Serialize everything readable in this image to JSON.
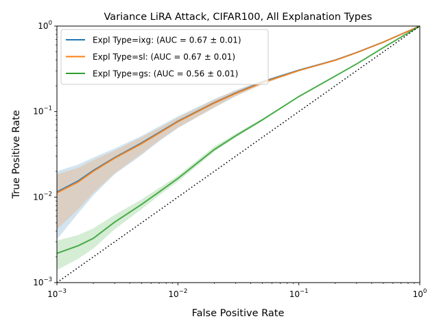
{
  "chart_data": {
    "type": "line",
    "title": "Variance LiRA Attack, CIFAR100, All Explanation Types",
    "xlabel": "False Positive Rate",
    "ylabel": "True Positive Rate",
    "x_scale": "log",
    "y_scale": "log",
    "xlim": [
      0.001,
      1
    ],
    "ylim": [
      0.001,
      1
    ],
    "x_ticks": [
      {
        "value": 0.001,
        "base": "10",
        "exp": "−3"
      },
      {
        "value": 0.01,
        "base": "10",
        "exp": "−2"
      },
      {
        "value": 0.1,
        "base": "10",
        "exp": "−1"
      },
      {
        "value": 1,
        "base": "10",
        "exp": "0"
      }
    ],
    "y_ticks": [
      {
        "value": 0.001,
        "base": "10",
        "exp": "−3"
      },
      {
        "value": 0.01,
        "base": "10",
        "exp": "−2"
      },
      {
        "value": 0.1,
        "base": "10",
        "exp": "−1"
      },
      {
        "value": 1,
        "base": "10",
        "exp": "0"
      }
    ],
    "grid": false,
    "legend_position": "upper-left",
    "series": [
      {
        "name": "Expl Type=ixg: (AUC = 0.67 ± 0.01)",
        "color": "#1f77b4",
        "x": [
          0.001,
          0.0015,
          0.002,
          0.003,
          0.005,
          0.007,
          0.01,
          0.02,
          0.03,
          0.05,
          0.1,
          0.2,
          0.3,
          0.5,
          1.0
        ],
        "y": [
          0.0115,
          0.0155,
          0.0205,
          0.029,
          0.043,
          0.057,
          0.077,
          0.127,
          0.165,
          0.222,
          0.305,
          0.4,
          0.49,
          0.65,
          1.0
        ],
        "y_lower": [
          0.0032,
          0.0065,
          0.0105,
          0.0185,
          0.031,
          0.045,
          0.064,
          0.111,
          0.151,
          0.21,
          0.297,
          0.394,
          0.486,
          0.648,
          1.0
        ],
        "y_upper": [
          0.02,
          0.024,
          0.029,
          0.037,
          0.052,
          0.067,
          0.088,
          0.14,
          0.178,
          0.232,
          0.312,
          0.406,
          0.494,
          0.652,
          1.0
        ]
      },
      {
        "name": "Expl Type=sl: (AUC = 0.67 ± 0.01)",
        "color": "#ff7f0e",
        "x": [
          0.001,
          0.0015,
          0.002,
          0.003,
          0.005,
          0.007,
          0.01,
          0.02,
          0.03,
          0.05,
          0.1,
          0.2,
          0.3,
          0.5,
          1.0
        ],
        "y": [
          0.0112,
          0.015,
          0.02,
          0.0285,
          0.042,
          0.056,
          0.076,
          0.126,
          0.163,
          0.218,
          0.302,
          0.398,
          0.488,
          0.649,
          1.0
        ],
        "y_lower": [
          0.0042,
          0.0072,
          0.0112,
          0.019,
          0.032,
          0.046,
          0.065,
          0.112,
          0.152,
          0.208,
          0.295,
          0.393,
          0.485,
          0.647,
          1.0
        ],
        "y_upper": [
          0.0185,
          0.022,
          0.027,
          0.035,
          0.05,
          0.064,
          0.085,
          0.138,
          0.176,
          0.229,
          0.309,
          0.403,
          0.491,
          0.651,
          1.0
        ]
      },
      {
        "name": "Expl Type=gs: (AUC = 0.56 ± 0.01)",
        "color": "#2ca02c",
        "x": [
          0.001,
          0.0015,
          0.002,
          0.003,
          0.005,
          0.007,
          0.01,
          0.02,
          0.03,
          0.05,
          0.1,
          0.2,
          0.3,
          0.5,
          1.0
        ],
        "y": [
          0.0022,
          0.0027,
          0.0033,
          0.0051,
          0.0082,
          0.0115,
          0.0165,
          0.036,
          0.052,
          0.08,
          0.15,
          0.26,
          0.36,
          0.56,
          1.0
        ],
        "y_lower": [
          0.0014,
          0.0019,
          0.0025,
          0.0042,
          0.0072,
          0.0105,
          0.0152,
          0.034,
          0.05,
          0.078,
          0.148,
          0.258,
          0.358,
          0.559,
          1.0
        ],
        "y_upper": [
          0.0031,
          0.0036,
          0.0043,
          0.0062,
          0.0094,
          0.0128,
          0.0178,
          0.039,
          0.055,
          0.083,
          0.153,
          0.262,
          0.362,
          0.561,
          1.0
        ]
      }
    ],
    "reference_line": {
      "x": [
        0.001,
        1
      ],
      "y": [
        0.001,
        1
      ],
      "style": "dotted",
      "color": "#000000"
    }
  }
}
